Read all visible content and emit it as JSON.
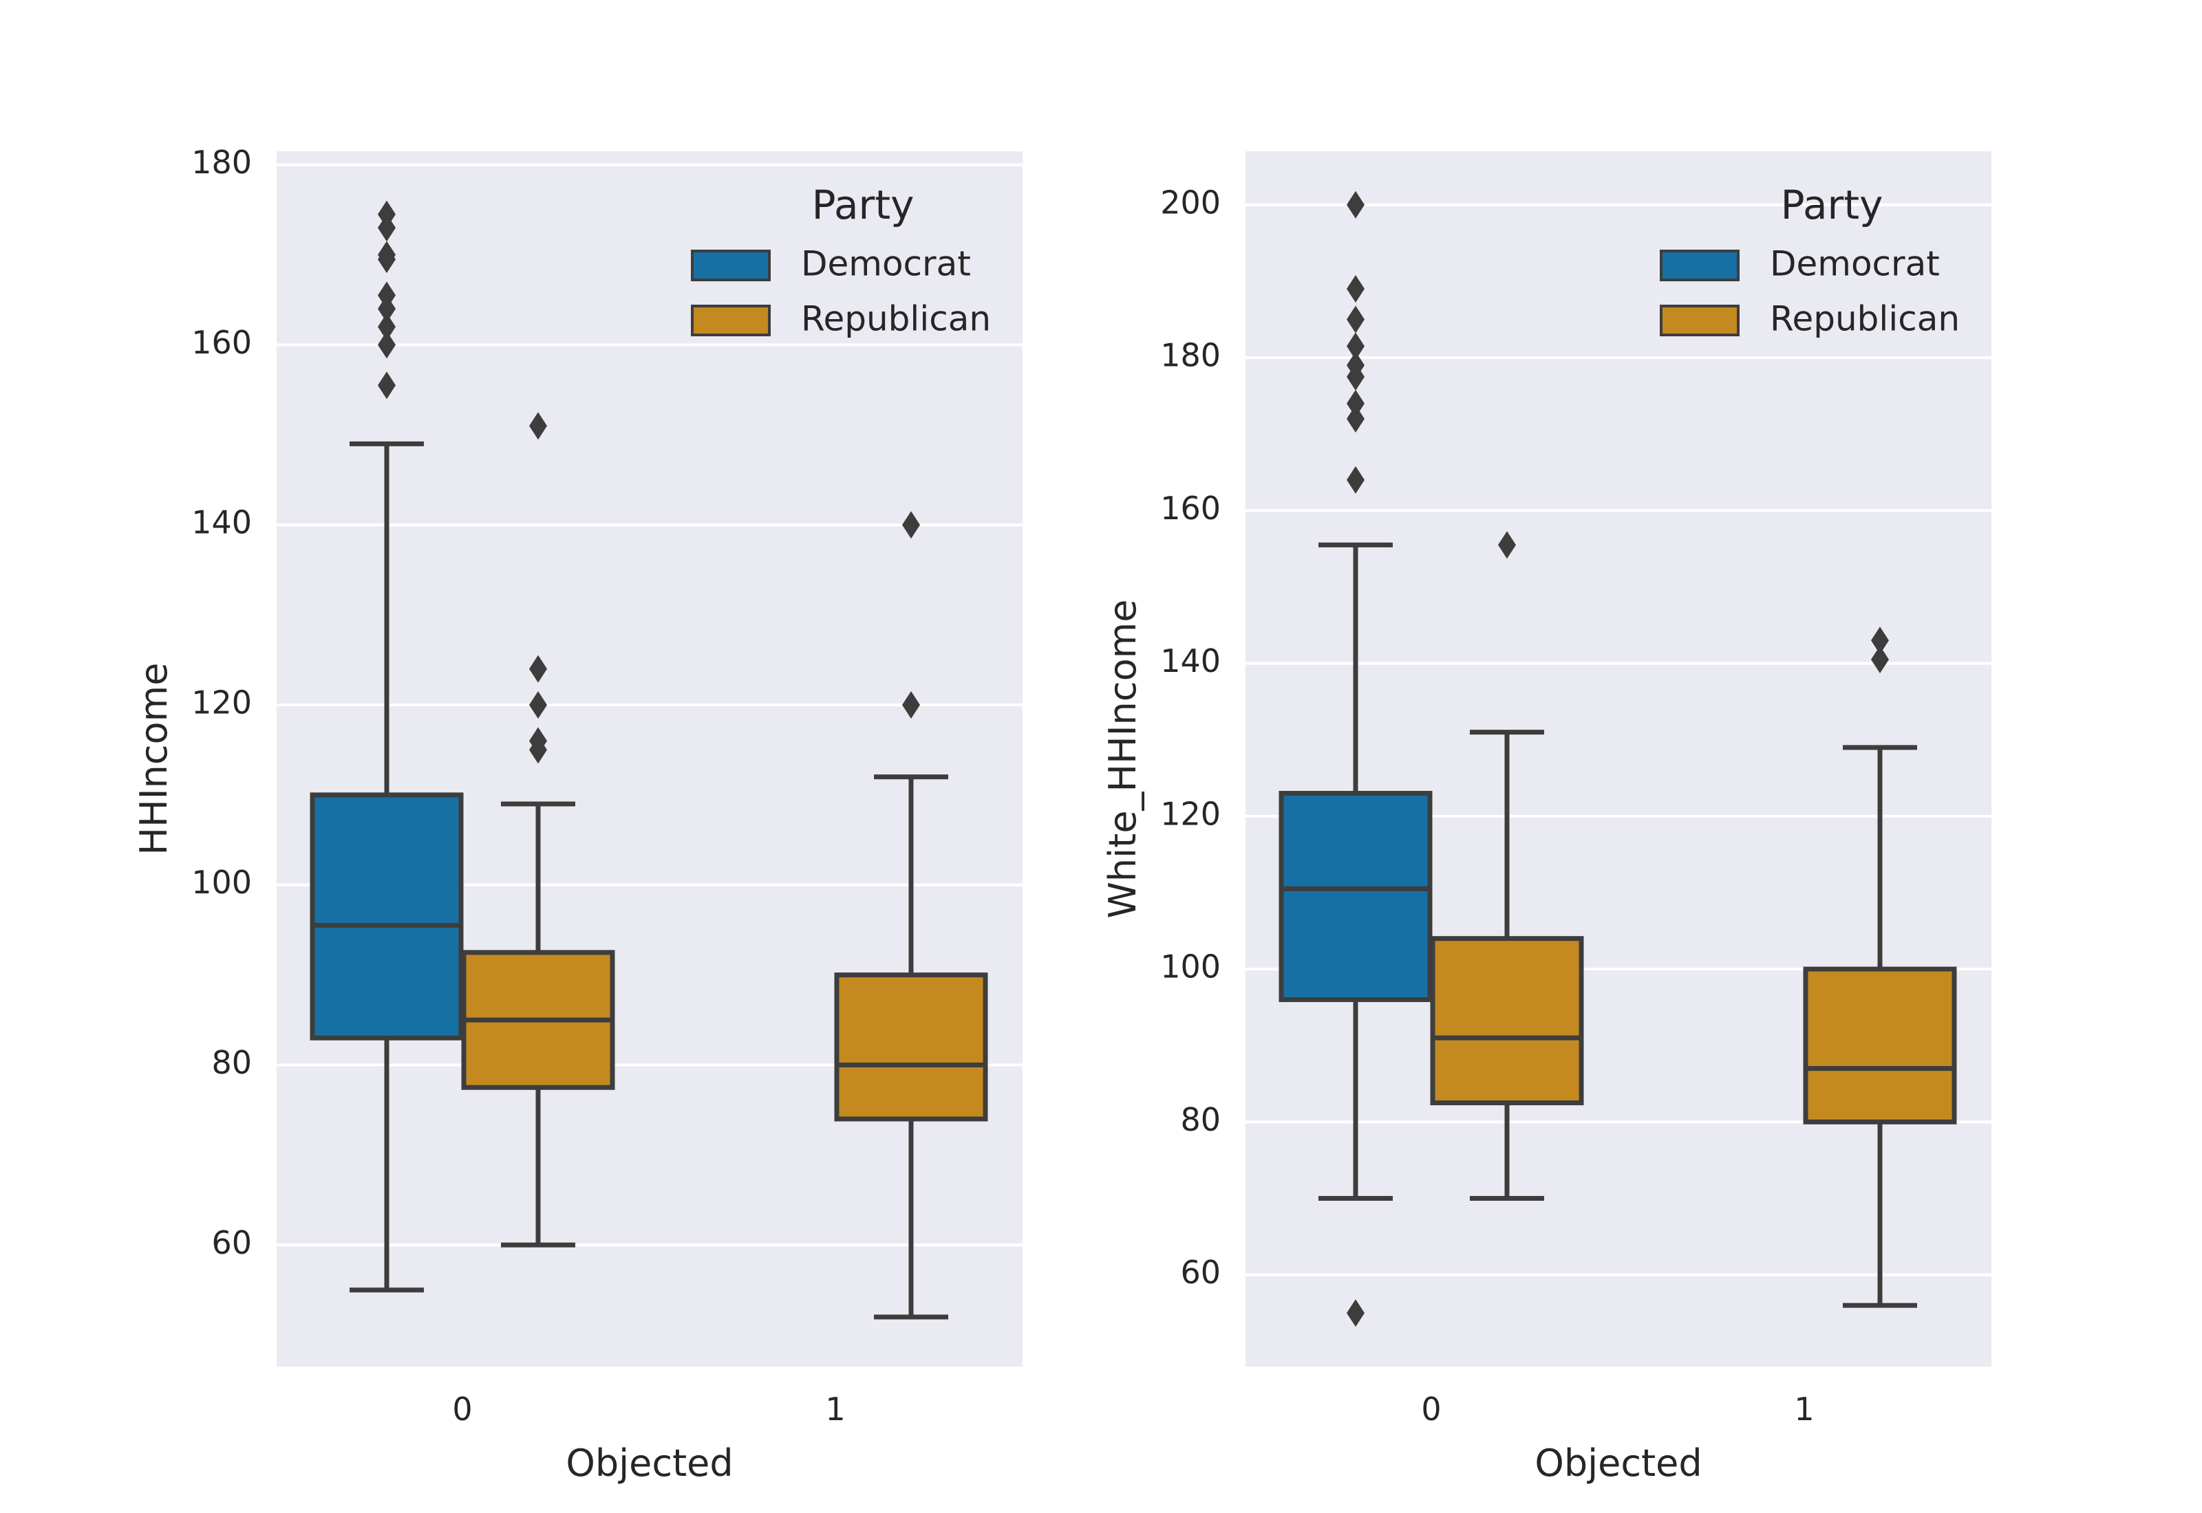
{
  "colors": {
    "background": "#eaeaf2",
    "grid": "#ffffff",
    "line": "#3d3d3d",
    "Democrat": "#1770a4",
    "Republican": "#c48a20"
  },
  "chart_data": [
    {
      "type": "box",
      "xlabel": "Objected",
      "ylabel": "HHIncome",
      "categories": [
        "0",
        "1"
      ],
      "yticks": [
        60,
        80,
        100,
        120,
        140,
        160,
        180
      ],
      "ylim": [
        46.5,
        181.5
      ],
      "grid": true,
      "legend": {
        "title": "Party",
        "position": "top-right",
        "entries": [
          "Democrat",
          "Republican"
        ]
      },
      "series": [
        {
          "name": "Democrat",
          "boxes": [
            {
              "category": "0",
              "whisker_low": 55,
              "q1": 83,
              "median": 95.5,
              "q3": 110,
              "whisker_high": 149,
              "outliers": [
                155.5,
                160,
                162,
                164,
                165.5,
                169.5,
                170,
                173,
                174.5
              ]
            }
          ]
        },
        {
          "name": "Republican",
          "boxes": [
            {
              "category": "0",
              "whisker_low": 60,
              "q1": 77.5,
              "median": 85,
              "q3": 92.5,
              "whisker_high": 109,
              "outliers": [
                115,
                116,
                120,
                124,
                151
              ]
            },
            {
              "category": "1",
              "whisker_low": 52,
              "q1": 74,
              "median": 80,
              "q3": 90,
              "whisker_high": 112,
              "outliers": [
                120,
                140
              ]
            }
          ]
        }
      ]
    },
    {
      "type": "box",
      "xlabel": "Objected",
      "ylabel": "White_HHIncome",
      "categories": [
        "0",
        "1"
      ],
      "yticks": [
        60,
        80,
        100,
        120,
        140,
        160,
        180,
        200
      ],
      "ylim": [
        48,
        207
      ],
      "grid": true,
      "legend": {
        "title": "Party",
        "position": "top-right",
        "entries": [
          "Democrat",
          "Republican"
        ]
      },
      "series": [
        {
          "name": "Democrat",
          "boxes": [
            {
              "category": "0",
              "whisker_low": 70,
              "q1": 96,
              "median": 110.5,
              "q3": 123,
              "whisker_high": 155.5,
              "outliers": [
                55,
                164,
                172,
                174,
                177.5,
                179,
                181.5,
                185,
                189,
                200
              ]
            }
          ]
        },
        {
          "name": "Republican",
          "boxes": [
            {
              "category": "0",
              "whisker_low": 70,
              "q1": 82.5,
              "median": 91,
              "q3": 104,
              "whisker_high": 131,
              "outliers": [
                155.5
              ]
            },
            {
              "category": "1",
              "whisker_low": 56,
              "q1": 80,
              "median": 87,
              "q3": 100,
              "whisker_high": 129,
              "outliers": [
                140.5,
                143
              ]
            }
          ]
        }
      ]
    }
  ]
}
